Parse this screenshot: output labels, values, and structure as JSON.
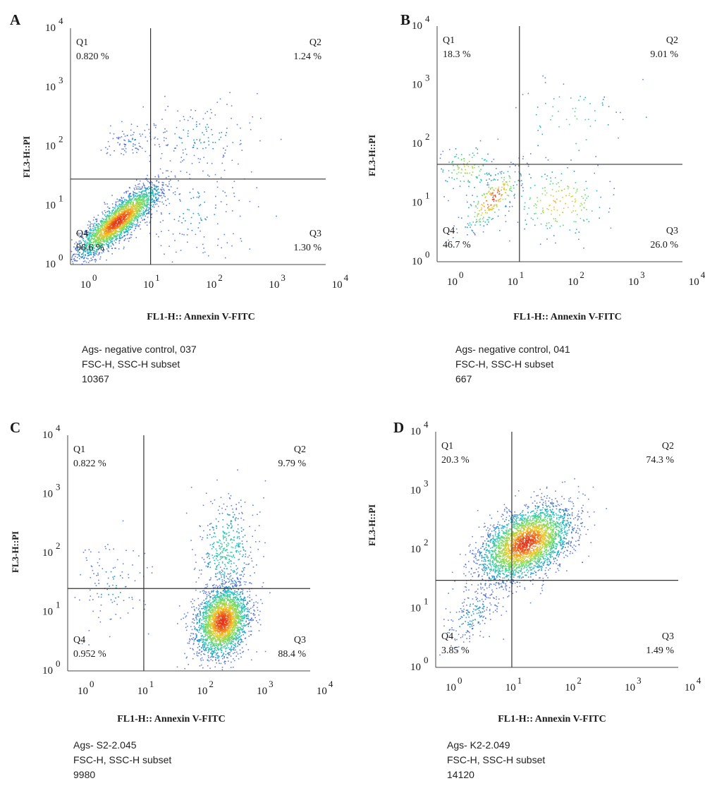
{
  "chart_data": [
    {
      "id": "A",
      "type": "scatter",
      "panel_label": "A",
      "xlabel": "FL1-H:: Annexin V-FITC",
      "ylabel": "FL3-H::PI",
      "xscale": "log",
      "yscale": "log",
      "xlim": [
        1,
        10000
      ],
      "ylim": [
        1,
        10000
      ],
      "x_ticks": [
        "10 0",
        "10 1",
        "10 2",
        "10 3",
        "10 4"
      ],
      "y_ticks": [
        "10 0",
        "10 1",
        "10 2",
        "10 3",
        "10 4"
      ],
      "gate": {
        "x": 18,
        "y": 28
      },
      "quadrants": [
        {
          "name": "Q1",
          "value": "0.820 %"
        },
        {
          "name": "Q2",
          "value": "1.24 %"
        },
        {
          "name": "Q3",
          "value": "1.30 %"
        },
        {
          "name": "Q4",
          "value": "96.6 %"
        }
      ],
      "caption": [
        "Ags- negative control, 037",
        "FSC-H, SSC-H subset",
        "10367"
      ],
      "events": 10367,
      "population_note": "dense diagonal population centred near Annexin 5, PI 5",
      "clusters": [
        {
          "cx": 5.5,
          "cy": 5.5,
          "sx": 0.32,
          "sy": 0.3,
          "rho": 0.85,
          "count": 2600
        },
        {
          "cx": 9,
          "cy": 120,
          "sx": 0.2,
          "sy": 0.15,
          "rho": 0.3,
          "count": 90
        },
        {
          "cx": 120,
          "cy": 150,
          "sx": 0.45,
          "sy": 0.3,
          "rho": 0.1,
          "count": 140
        },
        {
          "cx": 80,
          "cy": 8,
          "sx": 0.45,
          "sy": 0.4,
          "rho": 0.0,
          "count": 140
        }
      ]
    },
    {
      "id": "B",
      "type": "scatter",
      "panel_label": "B",
      "xlabel": "FL1-H:: Annexin V-FITC",
      "ylabel": "FL3-H::PI",
      "xscale": "log",
      "yscale": "log",
      "xlim": [
        1,
        10000
      ],
      "ylim": [
        1,
        10000
      ],
      "x_ticks": [
        "10 0",
        "10 1",
        "10 2",
        "10 3",
        "10 4"
      ],
      "y_ticks": [
        "10 0",
        "10 1",
        "10 2",
        "10 3",
        "10 4"
      ],
      "gate": {
        "x": 22,
        "y": 45
      },
      "quadrants": [
        {
          "name": "Q1",
          "value": "18.3 %"
        },
        {
          "name": "Q2",
          "value": "9.01 %"
        },
        {
          "name": "Q3",
          "value": "26.0 %"
        },
        {
          "name": "Q4",
          "value": "46.7 %"
        }
      ],
      "caption": [
        "Ags- negative control, 041",
        "FSC-H, SSC-H subset",
        "667"
      ],
      "events": 667,
      "clusters": [
        {
          "cx": 8,
          "cy": 12,
          "sx": 0.25,
          "sy": 0.28,
          "rho": 0.75,
          "count": 250
        },
        {
          "cx": 3,
          "cy": 40,
          "sx": 0.25,
          "sy": 0.2,
          "rho": 0.0,
          "count": 120
        },
        {
          "cx": 100,
          "cy": 10,
          "sx": 0.4,
          "sy": 0.3,
          "rho": 0.0,
          "count": 180
        },
        {
          "cx": 150,
          "cy": 250,
          "sx": 0.45,
          "sy": 0.4,
          "rho": 0.0,
          "count": 60
        }
      ]
    },
    {
      "id": "C",
      "type": "scatter",
      "panel_label": "C",
      "xlabel": "FL1-H:: Annexin V-FITC",
      "ylabel": "FL3-H::PI",
      "xscale": "log",
      "yscale": "log",
      "xlim": [
        1,
        10000
      ],
      "ylim": [
        1,
        10000
      ],
      "x_ticks": [
        "10 0",
        "10 1",
        "10 2",
        "10 3",
        "10 4"
      ],
      "y_ticks": [
        "10 0",
        "10 1",
        "10 2",
        "10 3",
        "10 4"
      ],
      "gate": {
        "x": 18,
        "y": 25
      },
      "quadrants": [
        {
          "name": "Q1",
          "value": "0.822 %"
        },
        {
          "name": "Q2",
          "value": "9.79 %"
        },
        {
          "name": "Q3",
          "value": "88.4 %"
        },
        {
          "name": "Q4",
          "value": "0.952 %"
        }
      ],
      "caption": [
        "Ags- S2-2.045",
        "FSC-H, SSC-H subset",
        "9980"
      ],
      "events": 9980,
      "clusters": [
        {
          "cx": 350,
          "cy": 7,
          "sx": 0.22,
          "sy": 0.3,
          "rho": 0.2,
          "count": 2600
        },
        {
          "cx": 400,
          "cy": 120,
          "sx": 0.25,
          "sy": 0.45,
          "rho": 0.0,
          "count": 420
        },
        {
          "cx": 5,
          "cy": 30,
          "sx": 0.3,
          "sy": 0.45,
          "rho": 0.0,
          "count": 110
        }
      ]
    },
    {
      "id": "D",
      "type": "scatter",
      "panel_label": "D",
      "xlabel": "FL1-H:: Annexin V-FITC",
      "ylabel": "FL3-H::PI",
      "xscale": "log",
      "yscale": "log",
      "xlim": [
        1,
        10000
      ],
      "ylim": [
        1,
        10000
      ],
      "x_ticks": [
        "10 0",
        "10 1",
        "10 2",
        "10 3",
        "10 4"
      ],
      "y_ticks": [
        "10 0",
        "10 1",
        "10 2",
        "10 3",
        "10 4"
      ],
      "gate": {
        "x": 18,
        "y": 30
      },
      "quadrants": [
        {
          "name": "Q1",
          "value": "20.3 %"
        },
        {
          "name": "Q2",
          "value": "74.3 %"
        },
        {
          "name": "Q3",
          "value": "1.49 %"
        },
        {
          "name": "Q4",
          "value": "3.85 %"
        }
      ],
      "caption": [
        "Ags- K2-2.049",
        "FSC-H, SSC-H subset",
        "14120"
      ],
      "events": 14120,
      "clusters": [
        {
          "cx": 30,
          "cy": 130,
          "sx": 0.38,
          "sy": 0.32,
          "rho": 0.45,
          "count": 3300
        },
        {
          "cx": 4,
          "cy": 8,
          "sx": 0.25,
          "sy": 0.3,
          "rho": 0.6,
          "count": 200
        }
      ]
    }
  ],
  "colors": {
    "axis": "#444444",
    "gate_line": "#333333",
    "density_low": "#3355cc",
    "density_mid": "#20c8a0",
    "density_high": "#e63a1e"
  }
}
